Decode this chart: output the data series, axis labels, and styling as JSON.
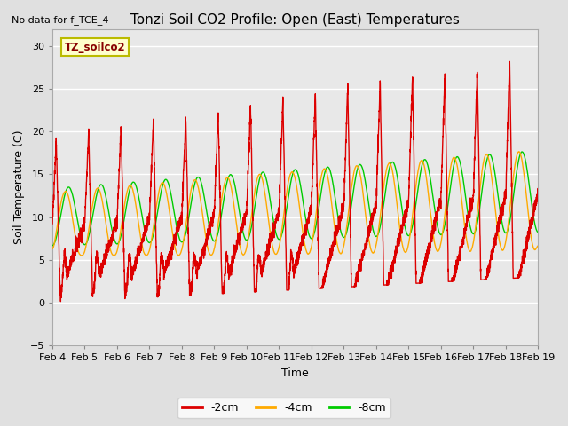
{
  "title": "Tonzi Soil CO2 Profile: Open (East) Temperatures",
  "no_data_text": "No data for f_TCE_4",
  "ylabel": "Soil Temperature (C)",
  "xlabel": "Time",
  "ylim": [
    -5,
    32
  ],
  "yticks": [
    -5,
    0,
    5,
    10,
    15,
    20,
    25,
    30
  ],
  "fig_bg_color": "#e0e0e0",
  "plot_bg_color": "#e8e8e8",
  "legend_label": "TZ_soilco2",
  "legend_fg": "#880000",
  "legend_bg": "#ffffcc",
  "legend_border": "#bbbb00",
  "color_2cm": "#dd0000",
  "color_4cm": "#ffaa00",
  "color_8cm": "#00cc00",
  "line_width": 1.0,
  "n_days": 15,
  "tick_labels": [
    "Feb 4",
    "Feb 5",
    "Feb 6",
    "Feb 7",
    "Feb 8",
    "Feb 9",
    "Feb 10",
    "Feb 11",
    "Feb 12",
    "Feb 13",
    "Feb 14",
    "Feb 15",
    "Feb 16",
    "Feb 17",
    "Feb 18",
    "Feb 19"
  ],
  "bottom_legend_bg": "#ffffff",
  "grid_color": "#ffffff",
  "grid_lw": 1.0
}
